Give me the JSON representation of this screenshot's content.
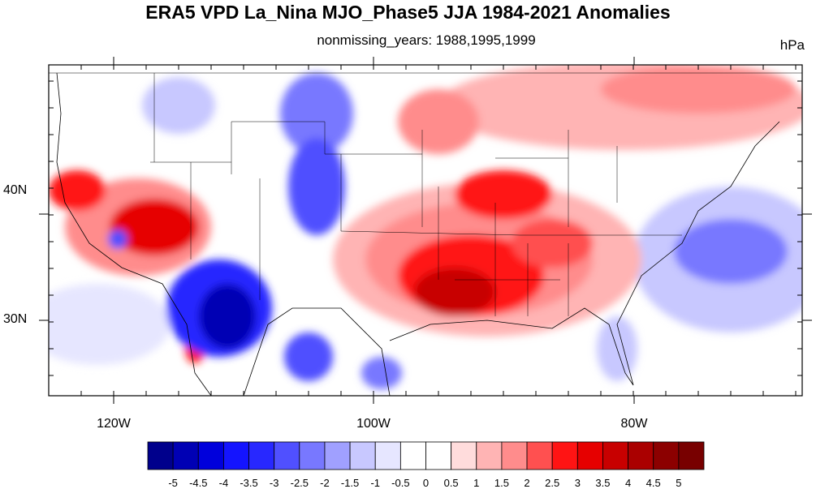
{
  "title": "ERA5 VPD La_Nina MJO_Phase5 JJA 1984-2021 Anomalies",
  "subtitle": "nonmissing_years: 1988,1995,1999",
  "units": "hPa",
  "lon_labels": [
    "120W",
    "100W",
    "80W"
  ],
  "lat_labels": [
    "40N",
    "30N"
  ],
  "colorbar": {
    "labels": [
      "-5",
      "-4.5",
      "-4",
      "-3.5",
      "-3",
      "-2.5",
      "-2",
      "-1.5",
      "-1",
      "-0.5",
      "0",
      "0.5",
      "1",
      "1.5",
      "2",
      "2.5",
      "3",
      "3.5",
      "4",
      "4.5",
      "5"
    ],
    "colors": [
      "#00008c",
      "#0000b4",
      "#0000dc",
      "#1414ff",
      "#2828ff",
      "#5050ff",
      "#7878ff",
      "#a0a0ff",
      "#c8c8ff",
      "#e6e6ff",
      "#ffffff",
      "#ffffff",
      "#ffdcdc",
      "#ffb4b4",
      "#ff8c8c",
      "#ff5050",
      "#ff1414",
      "#e60000",
      "#c80000",
      "#aa0000",
      "#8c0000",
      "#780000"
    ]
  }
}
